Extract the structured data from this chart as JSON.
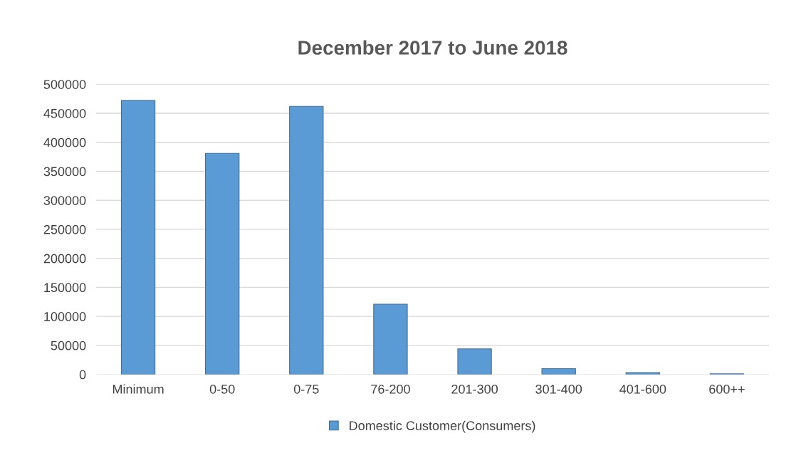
{
  "chart_data": {
    "type": "bar",
    "title": "December 2017 to June 2018",
    "categories": [
      "Minimum",
      "0-50",
      "0-75",
      "76-200",
      "201-300",
      "301-400",
      "401-600",
      "600++"
    ],
    "series": [
      {
        "name": "Domestic Customer(Consumers)",
        "color": "#5b9bd5",
        "values": [
          472000,
          381000,
          462000,
          121000,
          44000,
          10000,
          3000,
          1000
        ]
      }
    ],
    "ylim": [
      0,
      500000
    ],
    "yticks": [
      0,
      50000,
      100000,
      150000,
      200000,
      250000,
      300000,
      350000,
      400000,
      450000,
      500000
    ],
    "grid": "y",
    "legend": "bottom"
  }
}
